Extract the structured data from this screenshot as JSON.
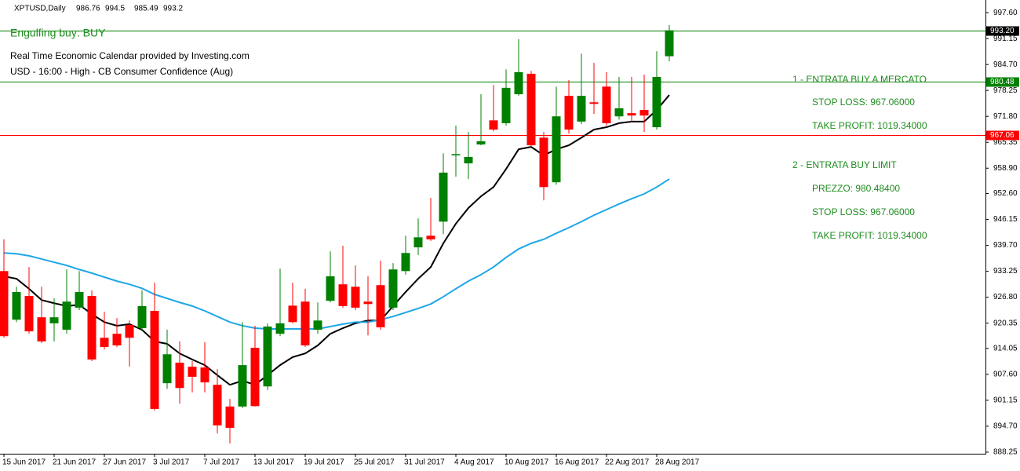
{
  "chart_data": {
    "type": "candlestick",
    "symbol": "XPTUSD,Daily",
    "categories": [
      "15 Jun 2017",
      null,
      null,
      null,
      "21 Jun 2017",
      null,
      null,
      null,
      "27 Jun 2017",
      null,
      null,
      null,
      "3 Jul 2017",
      null,
      null,
      null,
      "7 Jul 2017",
      null,
      null,
      null,
      "13 Jul 2017",
      null,
      null,
      null,
      "19 Jul 2017",
      null,
      null,
      null,
      "25 Jul 2017",
      null,
      null,
      null,
      "31 Jul 2017",
      null,
      null,
      null,
      "4 Aug 2017",
      null,
      null,
      null,
      "10 Aug 2017",
      null,
      null,
      null,
      "16 Aug 2017",
      null,
      null,
      null,
      "22 Aug 2017",
      null,
      null,
      null,
      "28 Aug 2017",
      null
    ],
    "open": [
      933.3,
      921.2,
      927.1,
      921.8,
      920.3,
      918.7,
      924.2,
      927.1,
      916.7,
      917.7,
      919.9,
      919.1,
      923.4,
      905.4,
      910.5,
      909.5,
      909.3,
      905.0,
      899.6,
      899.6,
      914.2,
      904.6,
      917.7,
      924.7,
      925.7,
      918.7,
      925.9,
      930.0,
      929.4,
      925.7,
      929.8,
      924.2,
      933.3,
      939.2,
      942.1,
      945.6,
      962.1,
      960.1,
      964.8,
      970.8,
      970.1,
      977.3,
      982.4,
      966.5,
      955.4,
      976.9,
      970.5,
      975.3,
      979.2,
      971.8,
      972.6,
      973.4,
      969.1,
      986.76
    ],
    "high": [
      941.2,
      929.4,
      934.3,
      929.4,
      926.5,
      933.7,
      933.3,
      928.5,
      923.2,
      921.6,
      921.0,
      928.5,
      930.4,
      918.7,
      915.8,
      910.9,
      915.6,
      908.9,
      901.5,
      920.6,
      919.7,
      920.3,
      933.9,
      930.4,
      928.9,
      925.5,
      938.2,
      939.6,
      934.7,
      932.0,
      935.9,
      935.3,
      942.1,
      946.4,
      951.5,
      962.6,
      969.5,
      967.9,
      977.3,
      979.6,
      983.5,
      991.0,
      983.1,
      967.9,
      979.2,
      980.8,
      987.4,
      985.1,
      982.8,
      981.6,
      981.6,
      982.2,
      988.0,
      994.5
    ],
    "low": [
      916.7,
      920.6,
      917.7,
      915.4,
      915.8,
      917.7,
      923.6,
      910.9,
      913.8,
      914.4,
      909.5,
      918.3,
      898.6,
      904.0,
      900.3,
      903.1,
      903.1,
      892.9,
      890.4,
      899.2,
      899.6,
      903.7,
      917.1,
      920.3,
      914.4,
      917.7,
      925.5,
      924.2,
      923.6,
      917.3,
      918.7,
      923.6,
      932.4,
      937.3,
      940.8,
      942.5,
      956.8,
      956.2,
      964.6,
      968.1,
      969.5,
      976.9,
      964.2,
      950.9,
      954.8,
      967.5,
      969.9,
      972.4,
      969.5,
      971.0,
      970.5,
      967.9,
      968.5,
      985.49
    ],
    "close": [
      917.1,
      928.1,
      918.3,
      915.8,
      921.8,
      925.7,
      928.1,
      911.3,
      914.4,
      914.8,
      916.7,
      924.6,
      899.0,
      912.6,
      904.2,
      907.0,
      905.6,
      894.9,
      894.3,
      909.9,
      899.7,
      919.5,
      920.3,
      920.6,
      914.8,
      921.0,
      932.0,
      924.6,
      924.2,
      925.1,
      919.3,
      933.7,
      937.8,
      941.7,
      941.2,
      957.8,
      962.4,
      961.7,
      965.6,
      968.5,
      978.9,
      982.8,
      964.6,
      954.2,
      971.8,
      968.5,
      976.9,
      974.9,
      970.1,
      973.8,
      972.0,
      972.0,
      981.6,
      993.2
    ],
    "up_color": "#008000",
    "down_color": "#ff0000",
    "lines": [
      {
        "color": "#000000",
        "values": [
          932.0,
          931.4,
          928.9,
          926.1,
          925.3,
          924.6,
          924.9,
          922.6,
          920.6,
          919.7,
          920.1,
          918.7,
          915.8,
          915.2,
          912.8,
          911.3,
          909.9,
          907.4,
          905.0,
          906.0,
          905.0,
          907.4,
          909.9,
          911.9,
          912.8,
          914.8,
          917.7,
          919.1,
          920.3,
          921.0,
          921.0,
          924.6,
          928.1,
          931.4,
          934.3,
          940.2,
          945.1,
          949.0,
          951.9,
          954.2,
          958.7,
          963.6,
          964.2,
          962.1,
          963.6,
          964.6,
          966.5,
          968.5,
          969.1,
          970.1,
          970.5,
          970.5,
          973.4,
          977.1
        ]
      },
      {
        "color": "#1ea7e8",
        "values": [
          937.8,
          937.6,
          937.1,
          936.3,
          935.5,
          934.7,
          933.7,
          932.8,
          931.8,
          930.8,
          930.0,
          929.0,
          927.5,
          926.5,
          925.5,
          924.6,
          923.4,
          922.0,
          920.6,
          919.7,
          919.1,
          918.9,
          918.9,
          918.9,
          918.9,
          918.9,
          919.5,
          920.1,
          920.6,
          920.6,
          921.2,
          922.0,
          923.0,
          924.0,
          925.1,
          926.9,
          928.9,
          930.8,
          932.4,
          934.3,
          936.7,
          938.8,
          940.2,
          941.2,
          942.7,
          944.1,
          945.6,
          947.2,
          948.6,
          950.0,
          951.3,
          952.5,
          954.2,
          956.2
        ]
      }
    ],
    "levels": [
      {
        "value": 993.2,
        "label": "993.20",
        "color": "#008000",
        "box_color": "#000000"
      },
      {
        "value": 980.48,
        "label": "980.48",
        "color": "#008000",
        "box_color": "#008000"
      },
      {
        "value": 967.06,
        "label": "967.06",
        "color": "#ff0000",
        "box_color": "#ff0000"
      }
    ],
    "ylim": [
      887.85,
      1000.75
    ],
    "yticks": [
      {
        "value": 997.6,
        "label": "997.60"
      },
      {
        "value": 991.15,
        "label": "991.15"
      },
      {
        "value": 984.7,
        "label": "984.70"
      },
      {
        "value": 978.25,
        "label": "978.25"
      },
      {
        "value": 971.8,
        "label": "971.80"
      },
      {
        "value": 965.35,
        "label": "965.35"
      },
      {
        "value": 958.9,
        "label": "958.90"
      },
      {
        "value": 952.6,
        "label": "952.60"
      },
      {
        "value": 946.15,
        "label": "946.15"
      },
      {
        "value": 939.7,
        "label": "939.70"
      },
      {
        "value": 933.25,
        "label": "933.25"
      },
      {
        "value": 926.8,
        "label": "926.80"
      },
      {
        "value": 920.35,
        "label": "920.35"
      },
      {
        "value": 914.05,
        "label": "914.05"
      },
      {
        "value": 907.6,
        "label": "907.60"
      },
      {
        "value": 901.15,
        "label": "901.15"
      },
      {
        "value": 894.7,
        "label": "894.70"
      },
      {
        "value": 888.25,
        "label": "888.25"
      }
    ],
    "annotations": [
      "Engulfing buy: BUY",
      "Real Time Economic Calendar provided by Investing.com",
      "USD - 16:00 - High - CB Consumer Confidence (Aug)",
      "1 - ENTRATA BUY A MERCATO",
      "STOP LOSS: 967.06000",
      "TAKE PROFIT: 1019.34000",
      "2 - ENTRATA BUY LIMIT",
      "PREZZO: 980.48400",
      "STOP LOSS: 967.06000",
      "TAKE PROFIT: 1019.34000"
    ]
  }
}
